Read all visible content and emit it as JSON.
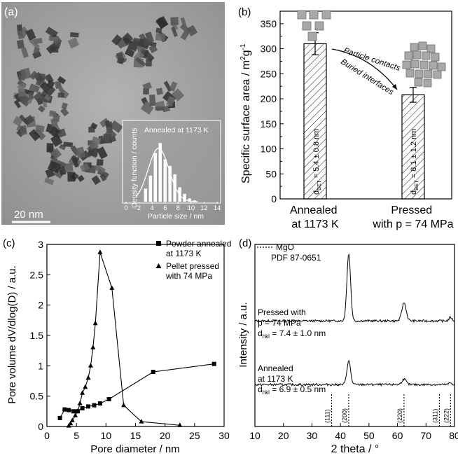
{
  "chart_data": [
    {
      "panel": "(a)",
      "type": "bar",
      "image": "TEM micrograph",
      "scale_bar": "20 nm",
      "inset": {
        "annotation": "Annealed at 1173 K",
        "xlabel": "Particle size / nm",
        "ylabel": "Density function / counts",
        "xticks": [
          "0",
          "2",
          "4",
          "6",
          "8",
          "10",
          "12",
          "14"
        ],
        "xlim": [
          0,
          14
        ],
        "ylim": [
          0,
          1
        ],
        "x": [
          3,
          3.75,
          4.5,
          5.25,
          6,
          6.75,
          7.5,
          8.25,
          9,
          9.75,
          10.5
        ],
        "values": [
          0.2,
          0.4,
          0.75,
          0.9,
          0.65,
          0.55,
          0.42,
          0.22,
          0.12,
          0.05,
          0.02
        ],
        "fit_curve": "gaussian",
        "fit_center": 5.0,
        "fit_sigma": 1.6,
        "fit_peak": 0.82
      }
    },
    {
      "panel": "(b)",
      "type": "bar",
      "categories": [
        "Annealed\nat 1173 K",
        "Pressed\nwith p = 74 MPa"
      ],
      "values": [
        310,
        208
      ],
      "errors": [
        22,
        15
      ],
      "bar_labels": [
        "d_BET = 5.4 ± 0.8 nm",
        "d_BET = 8.1 ± 1.2 nm"
      ],
      "bar_label_parts": [
        {
          "pre": "d",
          "sub": "BET",
          "post": " = 5.4 ± 0.8 nm"
        },
        {
          "pre": "d",
          "sub": "BET",
          "post": " = 8.1 ± 1.2 nm"
        }
      ],
      "annotations": [
        "Particle contacts",
        "Buried interfaces"
      ],
      "ylabel_parts": {
        "main": "Specific surface area / m",
        "sup1": "2",
        "g": "g",
        "sup2": "-1"
      },
      "ylim": [
        0,
        375
      ],
      "yticks": [
        0,
        50,
        100,
        150,
        200,
        250,
        300,
        350
      ]
    },
    {
      "panel": "(c)",
      "type": "line",
      "xlabel": "Pore diameter / nm",
      "ylabel": "Pore volume dV/dlog(D) / a.u.",
      "xlim": [
        0,
        30
      ],
      "ylim": [
        0,
        3
      ],
      "xticks": [
        0,
        5,
        10,
        15,
        20,
        25,
        30
      ],
      "yticks": [
        0,
        0.5,
        1,
        1.5,
        2,
        2.5,
        3
      ],
      "legend_position": "top-right",
      "series": [
        {
          "name": "Powder annealed at 1173 K",
          "name_lines": [
            "Powder annealed",
            "at 1173 K"
          ],
          "marker": "square",
          "x": [
            2.2,
            3.0,
            3.7,
            4.5,
            5.2,
            6.0,
            7.0,
            8.0,
            9.0,
            10.5,
            18.0,
            28.3
          ],
          "y": [
            0.14,
            0.28,
            0.27,
            0.25,
            0.25,
            0.3,
            0.33,
            0.35,
            0.38,
            0.45,
            0.9,
            1.03
          ]
        },
        {
          "name": "Pellet pressed with 74 MPa",
          "name_lines": [
            "Pellet pressed",
            "with 74 MPa"
          ],
          "marker": "triangle",
          "x": [
            3.7,
            4.0,
            4.3,
            4.8,
            5.2,
            5.6,
            6.0,
            6.5,
            7.0,
            7.4,
            7.8,
            8.2,
            9.0,
            11.0,
            13.0,
            16.0,
            22.5
          ],
          "y": [
            0.01,
            0.05,
            0.1,
            0.18,
            0.25,
            0.38,
            0.55,
            0.65,
            0.8,
            1.0,
            1.3,
            1.7,
            2.87,
            2.28,
            0.35,
            0.08,
            0.02
          ]
        }
      ]
    },
    {
      "panel": "(d)",
      "type": "line",
      "xlabel": "2 theta / °",
      "ylabel": "Intensity / a.u.",
      "xlim": [
        10,
        80
      ],
      "xticks": [
        10,
        20,
        30,
        40,
        50,
        60,
        70,
        80
      ],
      "legend": [
        "MgO",
        "PDF 87-0651"
      ],
      "reference_peaks": [
        {
          "label": "(111)",
          "x": 36.9
        },
        {
          "label": "(200)",
          "x": 42.9
        },
        {
          "label": "(220)",
          "x": 62.3
        },
        {
          "label": "(311)",
          "x": 74.7
        },
        {
          "label": "(222)",
          "x": 78.6
        }
      ],
      "series": [
        {
          "name_lines": [
            "Pressed  with",
            "p = 74 MPa"
          ],
          "d_parts": {
            "pre": "d",
            "sub": "hkl",
            "post": " = 7.4 ± 1.0 nm"
          },
          "baseline": 0.58,
          "peaks": [
            {
              "x": 42.9,
              "h": 0.37,
              "w": 0.65
            },
            {
              "x": 62.3,
              "h": 0.1,
              "w": 0.75
            },
            {
              "x": 78.6,
              "h": 0.02,
              "w": 0.5
            }
          ]
        },
        {
          "name_lines": [
            "Annealed",
            "at 1173 K"
          ],
          "d_parts": {
            "pre": "d",
            "sub": "hkl",
            "post": " = 6.9 ± 0.5 nm"
          },
          "baseline": 0.23,
          "peaks": [
            {
              "x": 42.9,
              "h": 0.13,
              "w": 0.65
            },
            {
              "x": 62.3,
              "h": 0.03,
              "w": 0.75
            },
            {
              "x": 78.6,
              "h": 0.01,
              "w": 0.5
            }
          ]
        }
      ]
    }
  ]
}
